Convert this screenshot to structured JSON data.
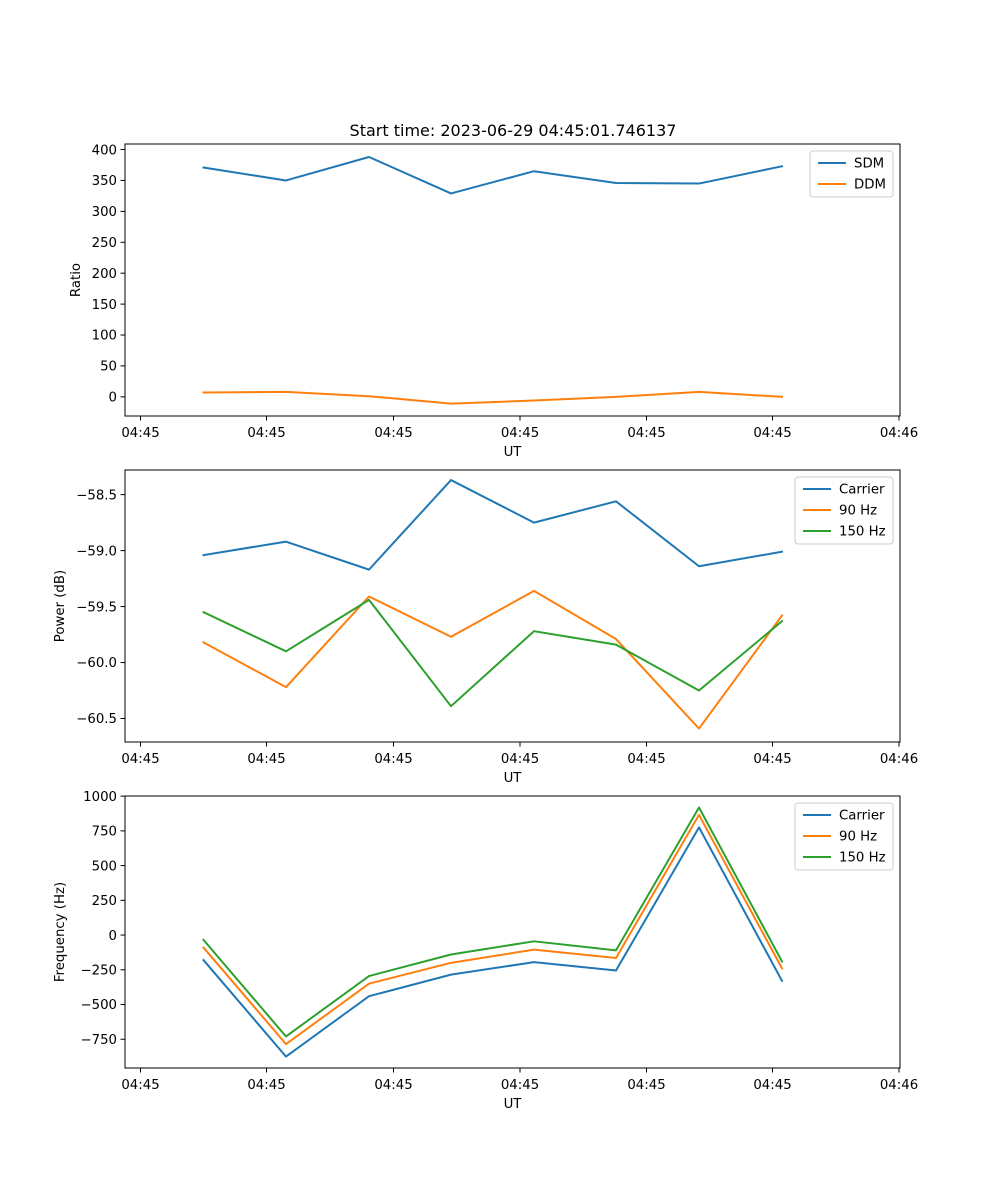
{
  "title": "Start time: 2023-06-29 04:45:01.746137",
  "colors": {
    "blue": "#1f77b4",
    "orange": "#ff7f0e",
    "green": "#2ca02c"
  },
  "chart_data": [
    {
      "type": "line",
      "title": "Start time: 2023-06-29 04:45:01.746137",
      "xlabel": "UT",
      "ylabel": "Ratio",
      "x_tick_labels": [
        "04:45",
        "04:45",
        "04:45",
        "04:45",
        "04:45",
        "04:45",
        "04:46"
      ],
      "y_ticks": [
        0,
        50,
        100,
        150,
        200,
        250,
        300,
        350,
        400
      ],
      "ylim": [
        -31,
        409
      ],
      "grid": false,
      "legend": "top-right",
      "series": [
        {
          "name": "SDM",
          "color": "#1f77b4",
          "values": [
            371,
            350,
            388,
            329,
            365,
            346,
            345,
            373
          ]
        },
        {
          "name": "DDM",
          "color": "#ff7f0e",
          "values": [
            7,
            8,
            1,
            -11,
            -6,
            0,
            8,
            0
          ]
        }
      ]
    },
    {
      "type": "line",
      "title": "",
      "xlabel": "UT",
      "ylabel": "Power (dB)",
      "x_tick_labels": [
        "04:45",
        "04:45",
        "04:45",
        "04:45",
        "04:45",
        "04:45",
        "04:46"
      ],
      "y_ticks": [
        -58.5,
        -59.0,
        -59.5,
        -60.0,
        -60.5
      ],
      "y_tick_labels": [
        "−58.5",
        "−59.0",
        "−59.5",
        "−60.0",
        "−60.5"
      ],
      "ylim": [
        -60.71,
        -58.28
      ],
      "grid": false,
      "legend": "top-right",
      "series": [
        {
          "name": "Carrier",
          "color": "#1f77b4",
          "values": [
            -59.04,
            -58.92,
            -59.17,
            -58.37,
            -58.75,
            -58.56,
            -59.14,
            -59.01
          ]
        },
        {
          "name": "90 Hz",
          "color": "#ff7f0e",
          "values": [
            -59.82,
            -60.22,
            -59.41,
            -59.77,
            -59.36,
            -59.79,
            -60.59,
            -59.58
          ]
        },
        {
          "name": "150 Hz",
          "color": "#2ca02c",
          "values": [
            -59.55,
            -59.9,
            -59.44,
            -60.39,
            -59.72,
            -59.84,
            -60.25,
            -59.63
          ]
        }
      ]
    },
    {
      "type": "line",
      "title": "",
      "xlabel": "UT",
      "ylabel": "Frequency (Hz)",
      "x_tick_labels": [
        "04:45",
        "04:45",
        "04:45",
        "04:45",
        "04:45",
        "04:45",
        "04:46"
      ],
      "y_ticks": [
        1000,
        750,
        500,
        250,
        0,
        -250,
        -500,
        -750
      ],
      "y_tick_labels": [
        "1000",
        "750",
        "500",
        "250",
        "0",
        "−250",
        "−500",
        "−750"
      ],
      "ylim": [
        -957,
        1001
      ],
      "grid": false,
      "legend": "top-right",
      "series": [
        {
          "name": "Carrier",
          "color": "#1f77b4",
          "values": [
            -180,
            -875,
            -440,
            -285,
            -195,
            -255,
            775,
            -330
          ]
        },
        {
          "name": "90 Hz",
          "color": "#ff7f0e",
          "values": [
            -90,
            -785,
            -350,
            -200,
            -105,
            -165,
            865,
            -240
          ]
        },
        {
          "name": "150 Hz",
          "color": "#2ca02c",
          "values": [
            -35,
            -730,
            -295,
            -140,
            -45,
            -110,
            918,
            -190
          ]
        }
      ]
    }
  ]
}
